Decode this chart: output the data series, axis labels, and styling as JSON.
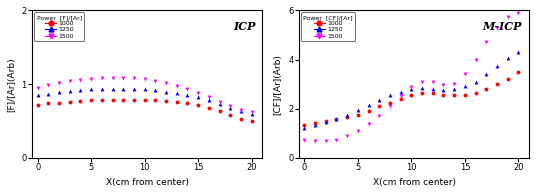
{
  "icp": {
    "title": "ICP",
    "xlabel": "X(cm from center)",
    "ylabel": "[F]/[Ar](Arb)",
    "ylim": [
      0,
      2
    ],
    "yticks": [
      0,
      1,
      2
    ],
    "xlim": [
      -0.5,
      21
    ],
    "xticks": [
      0,
      5,
      10,
      15,
      20
    ],
    "legend_title": "Power  [F]/[Ar]",
    "series": [
      {
        "label": "1000",
        "color": "red",
        "marker": "o",
        "x": [
          0,
          1,
          2,
          3,
          4,
          5,
          6,
          7,
          8,
          9,
          10,
          11,
          12,
          13,
          14,
          15,
          16,
          17,
          18,
          19,
          20
        ],
        "y": [
          0.72,
          0.74,
          0.75,
          0.76,
          0.77,
          0.78,
          0.78,
          0.78,
          0.78,
          0.78,
          0.78,
          0.78,
          0.77,
          0.76,
          0.74,
          0.72,
          0.68,
          0.63,
          0.58,
          0.53,
          0.5
        ]
      },
      {
        "label": "1250",
        "color": "blue",
        "marker": "^",
        "x": [
          0,
          1,
          2,
          3,
          4,
          5,
          6,
          7,
          8,
          9,
          10,
          11,
          12,
          13,
          14,
          15,
          16,
          17,
          18,
          19,
          20
        ],
        "y": [
          0.85,
          0.87,
          0.89,
          0.91,
          0.92,
          0.93,
          0.93,
          0.93,
          0.93,
          0.93,
          0.93,
          0.92,
          0.9,
          0.88,
          0.85,
          0.82,
          0.78,
          0.73,
          0.68,
          0.63,
          0.6
        ]
      },
      {
        "label": "1500",
        "color": "magenta",
        "marker": "v",
        "x": [
          0,
          1,
          2,
          3,
          4,
          5,
          6,
          7,
          8,
          9,
          10,
          11,
          12,
          13,
          14,
          15,
          16,
          17,
          18,
          19,
          20
        ],
        "y": [
          0.95,
          0.99,
          1.02,
          1.04,
          1.06,
          1.07,
          1.08,
          1.08,
          1.08,
          1.08,
          1.07,
          1.05,
          1.02,
          0.98,
          0.93,
          0.88,
          0.82,
          0.76,
          0.7,
          0.65,
          0.62
        ]
      }
    ]
  },
  "micp": {
    "title": "M-ICP",
    "xlabel": "X(cm from center)",
    "ylabel": "[CF]/[Ar](Arb)",
    "ylim": [
      0,
      6
    ],
    "yticks": [
      0,
      2,
      4,
      6
    ],
    "xlim": [
      -0.5,
      21
    ],
    "xticks": [
      0,
      5,
      10,
      15,
      20
    ],
    "legend_title": "Power  [CF]/[Ar]",
    "series": [
      {
        "label": "1000",
        "color": "red",
        "marker": "o",
        "x": [
          0,
          1,
          2,
          3,
          4,
          5,
          6,
          7,
          8,
          9,
          10,
          11,
          12,
          13,
          14,
          15,
          16,
          17,
          18,
          19,
          20
        ],
        "y": [
          1.35,
          1.42,
          1.5,
          1.58,
          1.65,
          1.75,
          1.9,
          2.1,
          2.25,
          2.4,
          2.55,
          2.63,
          2.63,
          2.58,
          2.55,
          2.58,
          2.65,
          2.8,
          3.0,
          3.2,
          3.5
        ]
      },
      {
        "label": "1250",
        "color": "blue",
        "marker": "^",
        "x": [
          0,
          1,
          2,
          3,
          4,
          5,
          6,
          7,
          8,
          9,
          10,
          11,
          12,
          13,
          14,
          15,
          16,
          17,
          18,
          19,
          20
        ],
        "y": [
          1.22,
          1.32,
          1.45,
          1.6,
          1.75,
          1.95,
          2.15,
          2.35,
          2.55,
          2.7,
          2.8,
          2.83,
          2.8,
          2.78,
          2.8,
          2.92,
          3.1,
          3.4,
          3.72,
          4.05,
          4.3
        ]
      },
      {
        "label": "1500",
        "color": "magenta",
        "marker": "v",
        "x": [
          0,
          1,
          2,
          3,
          4,
          5,
          6,
          7,
          8,
          9,
          10,
          11,
          12,
          13,
          14,
          15,
          16,
          17,
          18,
          19,
          20
        ],
        "y": [
          0.72,
          0.68,
          0.68,
          0.75,
          0.9,
          1.1,
          1.38,
          1.72,
          2.1,
          2.5,
          2.9,
          3.1,
          3.08,
          2.95,
          3.0,
          3.4,
          4.0,
          4.7,
          5.3,
          5.75,
          5.9
        ]
      }
    ]
  }
}
